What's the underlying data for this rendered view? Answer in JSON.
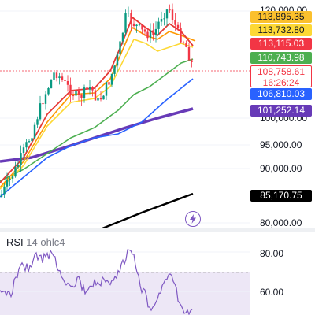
{
  "price_axis": {
    "labels": [
      "120,000.00",
      "100,000.00",
      "95,000.00",
      "90,000.00",
      "80,000.00"
    ]
  },
  "price_tags": [
    {
      "value": "113,895.35",
      "bg": "#fbc02d",
      "fg": "#131722"
    },
    {
      "value": "113,732.80",
      "bg": "#fdd835",
      "fg": "#131722"
    },
    {
      "value": "113,115.03",
      "bg": "#f23645",
      "fg": "#ffffff"
    },
    {
      "value": "110,743.98",
      "bg": "#4caf50",
      "fg": "#ffffff"
    },
    {
      "value": "108,758.61",
      "countdown": "16:26:24",
      "bg": "#ffffff",
      "fg": "#f23645"
    },
    {
      "value": "106,810.03",
      "bg": "#2962ff",
      "fg": "#ffffff"
    },
    {
      "value": "101,252.14",
      "bg": "#673ab7",
      "fg": "#ffffff"
    },
    {
      "value": "85,170.75",
      "bg": "#000000",
      "fg": "#ffffff"
    }
  ],
  "rsi": {
    "name": "RSI",
    "params": "14 ohlc4",
    "axis_labels": [
      "80.00",
      "60.00"
    ]
  },
  "colors": {
    "up_candle": "#089981",
    "down_candle": "#f23645",
    "ma_orange": "#ff9800",
    "ma_yellow": "#fdd835",
    "ma_red": "#e53935",
    "ma_green": "#4caf50",
    "ma_blue": "#2962ff",
    "ma_purple": "#673ab7",
    "ma_black": "#000000",
    "rsi_line": "#7e57c2",
    "rsi_band": "#ede7f6"
  },
  "icons": {
    "alert": "lightning-bolt-icon"
  }
}
